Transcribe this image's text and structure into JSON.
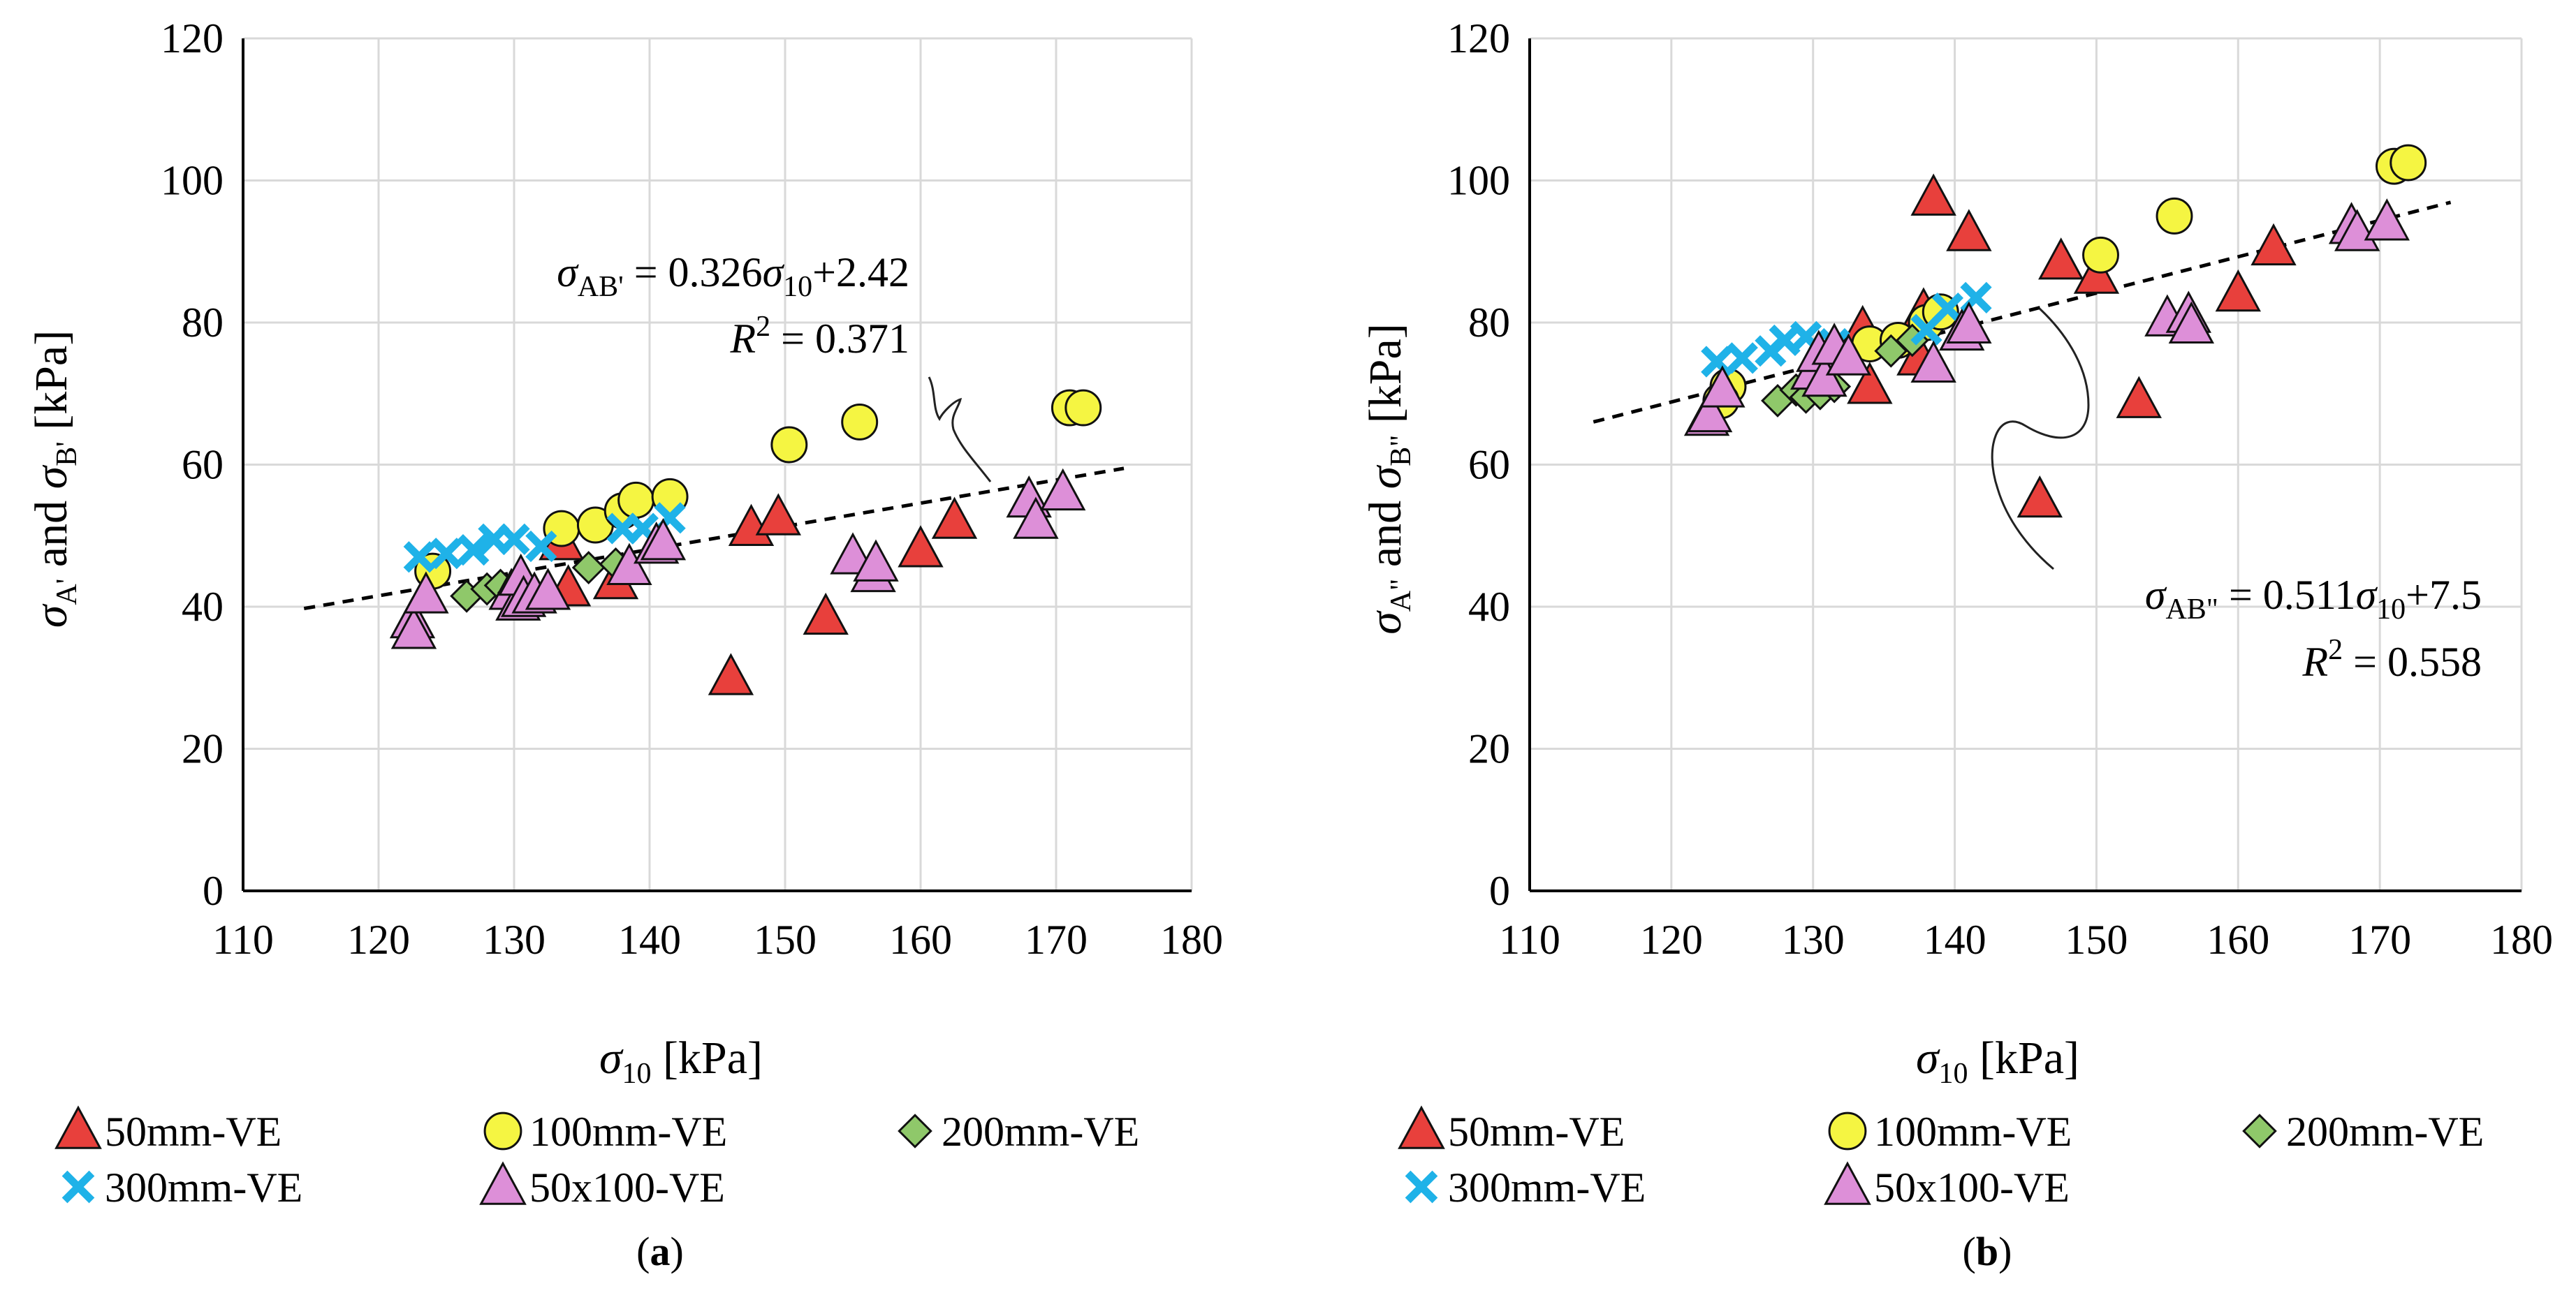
{
  "figure": {
    "panel_labels": [
      "a",
      "b"
    ]
  },
  "legend": {
    "items": [
      {
        "label": "50mm-VE",
        "marker": "triangle",
        "color": "#e8403c"
      },
      {
        "label": "100mm-VE",
        "marker": "circle",
        "color": "#f5f542"
      },
      {
        "label": "200mm-VE",
        "marker": "diamond",
        "color": "#8fc86a"
      },
      {
        "label": "300mm-VE",
        "marker": "x",
        "color": "#1fb2e8"
      },
      {
        "label": "50x100-VE",
        "marker": "triangle",
        "color": "#dd8fd8"
      }
    ]
  },
  "chart_data": [
    {
      "type": "scatter",
      "panel": "a",
      "xlabel": "σ10 [kPa]",
      "ylabel": "σA' and σB' [kPa]",
      "xlim": [
        110,
        180
      ],
      "ylim": [
        0,
        120
      ],
      "xticks": [
        110,
        120,
        130,
        140,
        150,
        160,
        170,
        180
      ],
      "yticks": [
        0,
        20,
        40,
        60,
        80,
        100,
        120
      ],
      "grid": true,
      "trendline": {
        "slope": 0.326,
        "intercept": 2.42,
        "x_range": [
          114.5,
          175
        ],
        "style": "dashed"
      },
      "equation": {
        "lhs_main": "σ",
        "lhs_sub": "AB'",
        "rhs_text": " = 0.326",
        "rhs_var": "σ",
        "rhs_sub": "10",
        "rhs_tail": "+2.42",
        "r2_var": "R",
        "r2_sup": "2",
        "r2_tail": " = 0.371"
      },
      "series": [
        {
          "name": "50mm-VE",
          "points": [
            [
              133.5,
              49
            ],
            [
              134,
              42.5
            ],
            [
              137.5,
              43.5
            ],
            [
              146,
              30
            ],
            [
              147.5,
              51
            ],
            [
              149.5,
              52.5
            ],
            [
              153,
              38.5
            ],
            [
              160,
              48
            ],
            [
              162.5,
              52
            ]
          ]
        },
        {
          "name": "100mm-VE",
          "points": [
            [
              124,
              45
            ],
            [
              133.5,
              51
            ],
            [
              136,
              51.5
            ],
            [
              138,
              53.5
            ],
            [
              139,
              55
            ],
            [
              141.5,
              55.5
            ],
            [
              150.3,
              62.8
            ],
            [
              155.5,
              66
            ],
            [
              171,
              68
            ],
            [
              172,
              68
            ]
          ]
        },
        {
          "name": "200mm-VE",
          "points": [
            [
              126.5,
              41.5
            ],
            [
              128,
              42.5
            ],
            [
              129,
              43
            ],
            [
              130,
              42
            ],
            [
              135.5,
              45.5
            ],
            [
              137.5,
              46
            ]
          ]
        },
        {
          "name": "300mm-VE",
          "points": [
            [
              123,
              47
            ],
            [
              125,
              47.5
            ],
            [
              127,
              48
            ],
            [
              128.5,
              49.5
            ],
            [
              130,
              49.5
            ],
            [
              132,
              48.5
            ],
            [
              138,
              51
            ],
            [
              139.5,
              51
            ],
            [
              141.5,
              52.5
            ]
          ]
        },
        {
          "name": "50x100-VE",
          "points": [
            [
              122.5,
              38
            ],
            [
              122.6,
              36.5
            ],
            [
              123.5,
              41.5
            ],
            [
              129.8,
              42
            ],
            [
              130.3,
              40.5
            ],
            [
              130.5,
              44
            ],
            [
              130.7,
              41
            ],
            [
              131.5,
              41.5
            ],
            [
              132.5,
              42
            ],
            [
              138.5,
              45.5
            ],
            [
              140.5,
              48.5
            ],
            [
              141,
              49
            ],
            [
              155,
              47
            ],
            [
              156.5,
              44.5
            ],
            [
              156.7,
              46
            ],
            [
              168,
              55
            ],
            [
              168.5,
              52
            ],
            [
              170.5,
              56
            ]
          ]
        }
      ]
    },
    {
      "type": "scatter",
      "panel": "b",
      "xlabel": "σ10 [kPa]",
      "ylabel": "σA\" and σB\" [kPa]",
      "xlim": [
        110,
        180
      ],
      "ylim": [
        0,
        120
      ],
      "xticks": [
        110,
        120,
        130,
        140,
        150,
        160,
        170,
        180
      ],
      "yticks": [
        0,
        20,
        40,
        60,
        80,
        100,
        120
      ],
      "grid": true,
      "trendline": {
        "slope": 0.511,
        "intercept": 7.5,
        "x_range": [
          114.5,
          175
        ],
        "style": "dashed"
      },
      "equation": {
        "lhs_main": "σ",
        "lhs_sub": "AB\"",
        "rhs_text": " = 0.511",
        "rhs_var": "σ",
        "rhs_sub": "10",
        "rhs_tail": "+7.5",
        "r2_var": "R",
        "r2_sup": "2",
        "r2_tail": " = 0.558"
      },
      "series": [
        {
          "name": "50mm-VE",
          "points": [
            [
              133.5,
              79
            ],
            [
              134,
              71
            ],
            [
              137.5,
              75
            ],
            [
              137.8,
              81.5
            ],
            [
              138.5,
              97.5
            ],
            [
              141,
              92.5
            ],
            [
              146,
              55
            ],
            [
              147.5,
              88.5
            ],
            [
              150,
              86.5
            ],
            [
              153,
              69
            ],
            [
              160,
              84
            ],
            [
              162.5,
              90.5
            ]
          ]
        },
        {
          "name": "100mm-VE",
          "points": [
            [
              124,
              71
            ],
            [
              123.5,
              69
            ],
            [
              134,
              77
            ],
            [
              136,
              77.5
            ],
            [
              138,
              80
            ],
            [
              139,
              81.5
            ],
            [
              150.3,
              89.5
            ],
            [
              155.5,
              95
            ],
            [
              171,
              102
            ],
            [
              172,
              102.5
            ]
          ]
        },
        {
          "name": "200mm-VE",
          "points": [
            [
              127.5,
              69
            ],
            [
              128.8,
              70.5
            ],
            [
              129.5,
              69.5
            ],
            [
              130.5,
              70
            ],
            [
              131.5,
              71
            ],
            [
              135.5,
              76
            ],
            [
              137,
              77.5
            ]
          ]
        },
        {
          "name": "300mm-VE",
          "points": [
            [
              123.2,
              74.5
            ],
            [
              125,
              75
            ],
            [
              127,
              76
            ],
            [
              128,
              77.5
            ],
            [
              129.5,
              78
            ],
            [
              131.5,
              77
            ],
            [
              138,
              79
            ],
            [
              139.5,
              82
            ],
            [
              141.5,
              83.5
            ]
          ]
        },
        {
          "name": "50x100-VE",
          "points": [
            [
              122.5,
              66.5
            ],
            [
              122.7,
              67
            ],
            [
              123.6,
              70.5
            ],
            [
              130,
              73
            ],
            [
              130.4,
              75.5
            ],
            [
              130.8,
              72
            ],
            [
              131.5,
              76.5
            ],
            [
              132.5,
              75
            ],
            [
              138.5,
              74
            ],
            [
              140.5,
              78.5
            ],
            [
              141,
              79.5
            ],
            [
              155,
              80.5
            ],
            [
              156.5,
              81
            ],
            [
              156.7,
              79.5
            ],
            [
              168,
              93.5
            ],
            [
              168.4,
              92.5
            ],
            [
              170.5,
              94
            ]
          ]
        }
      ]
    }
  ]
}
